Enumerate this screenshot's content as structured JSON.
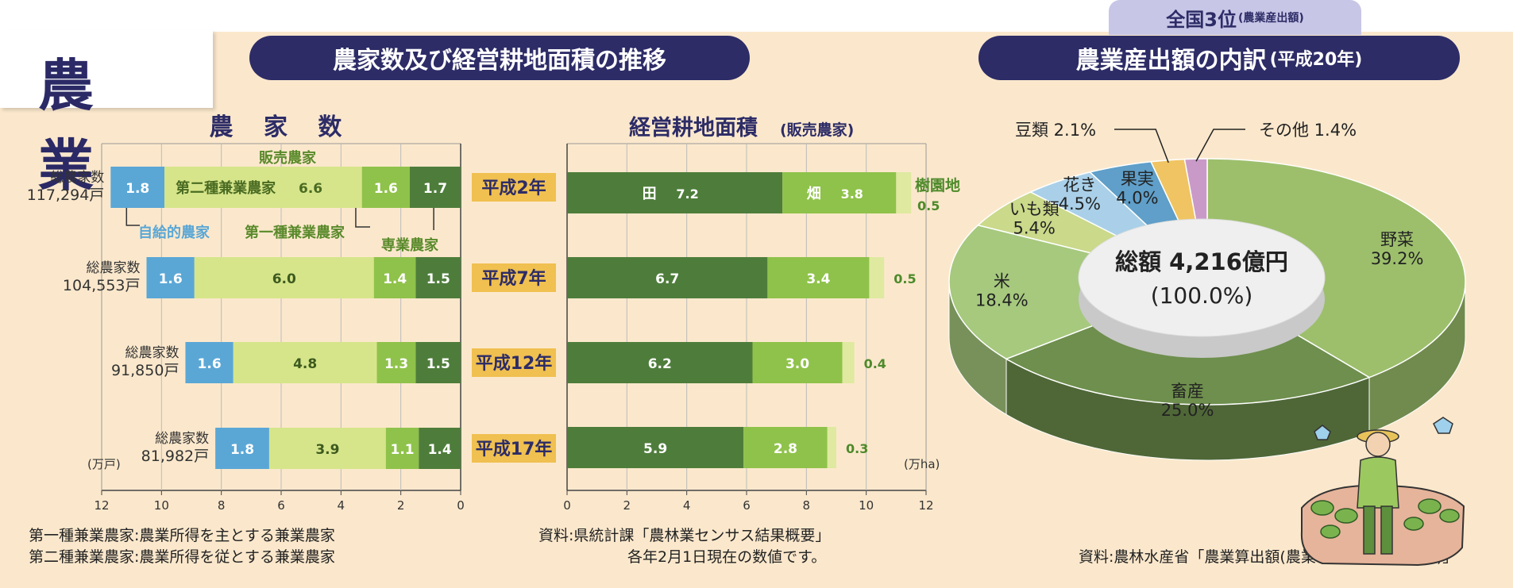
{
  "page": {
    "section_title": "農 業",
    "left_header": "農家数及び経営耕地面積の推移",
    "right_header_main": "農業産出額の内訳",
    "right_header_sub": "(平成20年)",
    "badge_main": "全国3位",
    "badge_sub": "(農業産出額)",
    "footnote_1": "第一種兼業農家:農業所得を主とする兼業農家",
    "footnote_2": "第二種兼業農家:農業所得を従とする兼業農家",
    "source_left_1": "資料:県統計課「農林業センサス結果概要」",
    "source_left_2": "各年2月1日現在の数値です。",
    "source_right": "資料:農林水産省「農業算出額(農業地域、都道府県別)」"
  },
  "colors": {
    "navy": "#2d2c67",
    "self_sufficient": "#5aa7d6",
    "type2": "#d6e58a",
    "type1": "#8fc24a",
    "fulltime": "#4e7d3b",
    "paddy": "#4e7d3b",
    "field": "#8fc24a",
    "orchard": "#dfe9a0",
    "year_label_bg": "#f0c050"
  },
  "chart_data": [
    {
      "type": "bar",
      "orientation": "horizontal",
      "title": "農 家 数",
      "unit_label": "(万戸)",
      "xlim": [
        12,
        0
      ],
      "xticks": [
        "12",
        "10",
        "8",
        "6",
        "4",
        "2",
        "0"
      ],
      "legend": {
        "sales_farmers": "販売農家",
        "self_sufficient": "自給的農家",
        "type1": "第一種兼業農家",
        "type2": "第二種兼業農家",
        "fulltime": "専業農家"
      },
      "categories": [
        "平成2年",
        "平成7年",
        "平成12年",
        "平成17年"
      ],
      "totals_label": "総農家数",
      "totals": [
        "117,294戸",
        "104,553戸",
        "91,850戸",
        "81,982戸"
      ],
      "series": [
        {
          "name": "自給的農家",
          "values": [
            1.8,
            1.6,
            1.6,
            1.8
          ]
        },
        {
          "name": "第二種兼業農家",
          "values": [
            6.6,
            6.0,
            4.8,
            3.9
          ]
        },
        {
          "name": "第一種兼業農家",
          "values": [
            1.6,
            1.4,
            1.3,
            1.1
          ]
        },
        {
          "name": "専業農家",
          "values": [
            1.7,
            1.5,
            1.5,
            1.4
          ]
        }
      ],
      "first_row_prefix": {
        "type2": "第二種兼業農家"
      }
    },
    {
      "type": "bar",
      "orientation": "horizontal",
      "title": "経営耕地面積",
      "title_sub": "(販売農家)",
      "unit_label": "(万ha)",
      "xlim": [
        0,
        12
      ],
      "xticks": [
        "0",
        "2",
        "4",
        "6",
        "8",
        "10",
        "12"
      ],
      "categories": [
        "平成2年",
        "平成7年",
        "平成12年",
        "平成17年"
      ],
      "series": [
        {
          "name": "田",
          "values": [
            7.2,
            6.7,
            6.2,
            5.9
          ]
        },
        {
          "name": "畑",
          "values": [
            3.8,
            3.4,
            3.0,
            2.8
          ]
        },
        {
          "name": "樹園地",
          "values": [
            0.5,
            0.5,
            0.4,
            0.3
          ]
        }
      ]
    },
    {
      "type": "pie",
      "center_label_1": "総額 4,216億円",
      "center_label_2": "(100.0%)",
      "slices": [
        {
          "name": "野菜",
          "pct": "39.2%",
          "value": 39.2,
          "color": "#9dbf6c"
        },
        {
          "name": "畜産",
          "pct": "25.0%",
          "value": 25.0,
          "color": "#6e8f4d"
        },
        {
          "name": "米",
          "pct": "18.4%",
          "value": 18.4,
          "color": "#a6c97e"
        },
        {
          "name": "いも類",
          "pct": "5.4%",
          "value": 5.4,
          "color": "#cad98a"
        },
        {
          "name": "花き",
          "pct": "4.5%",
          "value": 4.5,
          "color": "#a9d0e8"
        },
        {
          "name": "果実",
          "pct": "4.0%",
          "value": 4.0,
          "color": "#5f9fc9"
        },
        {
          "name": "豆類",
          "pct": "2.1%",
          "value": 2.1,
          "color": "#f0c462"
        },
        {
          "name": "その他",
          "pct": "1.4%",
          "value": 1.4,
          "color": "#c99ac8"
        }
      ]
    }
  ]
}
